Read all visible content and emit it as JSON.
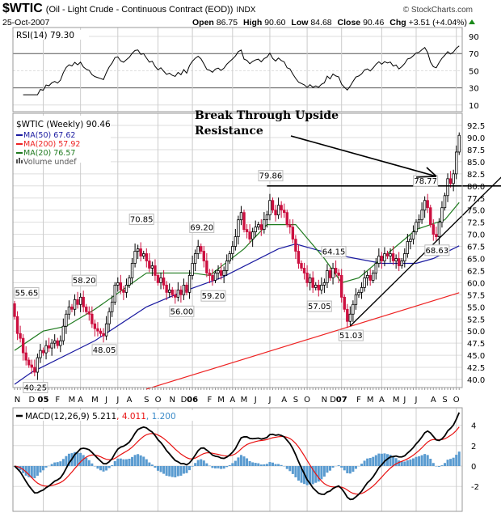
{
  "header": {
    "symbol": "$WTIC",
    "name": "(Oil - Light Crude - Continuous Contract (EOD))",
    "exchange": "INDX",
    "credit": "© StockCharts.com",
    "date": "25-Oct-2007",
    "open_label": "Open",
    "open": "86.75",
    "high_label": "High",
    "high": "90.60",
    "low_label": "Low",
    "low": "84.68",
    "close_label": "Close",
    "close": "90.46",
    "chg_label": "Chg",
    "chg": "+3.51 (+4.04%)"
  },
  "legend": {
    "rsi": "RSI(14) 79.30",
    "price": "$WTIC (Weekly) 90.46",
    "ma50": "MA(50) 67.62",
    "ma200": "MA(200) 57.92",
    "ma20": "MA(20) 76.57",
    "volume": "Volume undef",
    "macd": "MACD(12,26,9) 5.211",
    "macd_signal": ", 4.011",
    "macd_hist": ", 1.200"
  },
  "annotation_text": [
    "Break Through Upside",
    "Resistance"
  ],
  "colors": {
    "up": "#000000",
    "down": "#cc1040",
    "ma50": "#1a1aa0",
    "ma200": "#ee2222",
    "ma20": "#1e7a1e",
    "hist": "#5a9bd0",
    "signal": "#e81010"
  },
  "chart_data": {
    "type": "candlestick",
    "title": "$WTIC (Weekly)",
    "closes": [
      53.0,
      49.5,
      48.5,
      45.5,
      44.0,
      43.0,
      42.5,
      41.5,
      44.5,
      46.0,
      45.5,
      47.0,
      46.5,
      47.5,
      48.0,
      47.0,
      48.0,
      51.0,
      53.5,
      55.0,
      54.5,
      56.5,
      55.5,
      57.0,
      55.0,
      54.0,
      53.5,
      51.5,
      50.5,
      50.0,
      49.5,
      49.0,
      51.5,
      54.0,
      56.0,
      59.5,
      60.0,
      58.5,
      58.0,
      59.5,
      61.0,
      64.0,
      66.5,
      67.0,
      65.5,
      66.0,
      64.5,
      63.0,
      63.5,
      61.5,
      60.0,
      61.0,
      59.5,
      58.0,
      58.5,
      57.5,
      57.0,
      58.5,
      57.5,
      59.5,
      58.0,
      61.5,
      64.0,
      66.0,
      67.5,
      66.5,
      64.5,
      62.0,
      61.5,
      60.5,
      62.0,
      62.5,
      61.5,
      62.5,
      64.5,
      66.0,
      67.5,
      69.5,
      73.0,
      74.5,
      71.0,
      70.5,
      69.0,
      70.5,
      71.5,
      72.0,
      71.0,
      73.0,
      74.0,
      77.0,
      75.0,
      74.0,
      76.0,
      75.0,
      74.5,
      72.0,
      71.5,
      69.0,
      66.5,
      64.0,
      63.0,
      62.0,
      60.0,
      61.0,
      59.0,
      59.5,
      58.5,
      59.5,
      60.0,
      62.5,
      61.0,
      63.0,
      62.0,
      61.5,
      57.0,
      54.5,
      52.0,
      53.5,
      55.5,
      57.5,
      58.0,
      59.0,
      61.0,
      61.5,
      60.5,
      62.0,
      64.0,
      65.5,
      64.5,
      66.0,
      65.5,
      66.0,
      64.5,
      65.0,
      63.5,
      64.5,
      66.0,
      68.5,
      69.0,
      70.5,
      72.5,
      73.0,
      75.0,
      77.0,
      75.5,
      72.0,
      70.0,
      69.5,
      72.5,
      75.5,
      78.0,
      81.5,
      80.5,
      82.5,
      87.0,
      90.46
    ],
    "first_open": 55.65,
    "ma50": [
      [
        0,
        39
      ],
      [
        6,
        41.5
      ],
      [
        28,
        48
      ],
      [
        46,
        55
      ],
      [
        58,
        58
      ],
      [
        72,
        61
      ],
      [
        92,
        67
      ],
      [
        98,
        68
      ],
      [
        110,
        66
      ],
      [
        128,
        64
      ],
      [
        140,
        64
      ],
      [
        146,
        65
      ],
      [
        155,
        67.62
      ]
    ],
    "ma20": [
      [
        0,
        46
      ],
      [
        10,
        50
      ],
      [
        18,
        51
      ],
      [
        28,
        54.5
      ],
      [
        46,
        62
      ],
      [
        56,
        62
      ],
      [
        62,
        62
      ],
      [
        68,
        61.5
      ],
      [
        80,
        67
      ],
      [
        88,
        72
      ],
      [
        98,
        72
      ],
      [
        108,
        65
      ],
      [
        114,
        60
      ],
      [
        120,
        61
      ],
      [
        130,
        66
      ],
      [
        140,
        71
      ],
      [
        150,
        73
      ],
      [
        155,
        76.57
      ]
    ],
    "ma200": [
      [
        46,
        38
      ],
      [
        155,
        57.92
      ]
    ],
    "price_labels": [
      {
        "i": 0,
        "p": 55.65,
        "text": "55.65",
        "pos": "above"
      },
      {
        "i": 7,
        "p": 40.25,
        "text": "40.25",
        "pos": "below"
      },
      {
        "i": 24,
        "p": 58.2,
        "text": "58.20",
        "pos": "above"
      },
      {
        "i": 31,
        "p": 48.05,
        "text": "48.05",
        "pos": "below"
      },
      {
        "i": 44,
        "p": 70.85,
        "text": "70.85",
        "pos": "above"
      },
      {
        "i": 58,
        "p": 56.0,
        "text": "56.00",
        "pos": "below"
      },
      {
        "i": 65,
        "p": 69.2,
        "text": "69.20",
        "pos": "above"
      },
      {
        "i": 69,
        "p": 59.2,
        "text": "59.20",
        "pos": "below"
      },
      {
        "i": 89,
        "p": 79.86,
        "text": "79.86",
        "pos": "above"
      },
      {
        "i": 106,
        "p": 57.05,
        "text": "57.05",
        "pos": "below"
      },
      {
        "i": 111,
        "p": 64.15,
        "text": "64.15",
        "pos": "above"
      },
      {
        "i": 117,
        "p": 51.03,
        "text": "51.03",
        "pos": "below"
      },
      {
        "i": 143,
        "p": 78.77,
        "text": "78.77",
        "pos": "above"
      },
      {
        "i": 147,
        "p": 68.63,
        "text": "68.63",
        "pos": "below"
      }
    ],
    "resistance": 80,
    "trendline": [
      [
        117,
        51.03
      ],
      [
        170,
        82
      ]
    ],
    "y_ticks": [
      "92.5",
      "90.0",
      "87.5",
      "85.0",
      "82.5",
      "80.0",
      "77.5",
      "75.0",
      "72.5",
      "70.0",
      "67.5",
      "65.0",
      "62.5",
      "60.0",
      "57.5",
      "55.0",
      "52.5",
      "50.0",
      "47.5",
      "45.0",
      "42.5",
      "40.0"
    ],
    "ylim": [
      40,
      92.5
    ],
    "rsi_ticks": [
      "90",
      "70",
      "50",
      "30",
      "10"
    ],
    "macd_ticks": [
      "4",
      "2",
      "0",
      "-2"
    ],
    "x_ticks": [
      [
        1,
        "N"
      ],
      [
        6,
        "D"
      ],
      [
        10,
        "05"
      ],
      [
        15,
        "F"
      ],
      [
        20,
        "M"
      ],
      [
        23,
        "A"
      ],
      [
        28,
        "M"
      ],
      [
        32,
        "J"
      ],
      [
        36,
        "J"
      ],
      [
        40,
        "A"
      ],
      [
        46,
        "S"
      ],
      [
        50,
        "O"
      ],
      [
        55,
        "N"
      ],
      [
        59,
        "D"
      ],
      [
        62,
        "06"
      ],
      [
        68,
        "F"
      ],
      [
        72,
        "M"
      ],
      [
        76,
        "A"
      ],
      [
        80,
        "M"
      ],
      [
        84,
        "J"
      ],
      [
        89,
        "J"
      ],
      [
        94,
        "A"
      ],
      [
        98,
        "S"
      ],
      [
        102,
        "O"
      ],
      [
        108,
        "N"
      ],
      [
        111,
        "D"
      ],
      [
        114,
        "07"
      ],
      [
        120,
        "F"
      ],
      [
        124,
        "M"
      ],
      [
        128,
        "A"
      ],
      [
        133,
        "M"
      ],
      [
        136,
        "J"
      ],
      [
        140,
        "J"
      ],
      [
        146,
        "A"
      ],
      [
        150,
        "S"
      ],
      [
        154,
        "O"
      ]
    ]
  }
}
